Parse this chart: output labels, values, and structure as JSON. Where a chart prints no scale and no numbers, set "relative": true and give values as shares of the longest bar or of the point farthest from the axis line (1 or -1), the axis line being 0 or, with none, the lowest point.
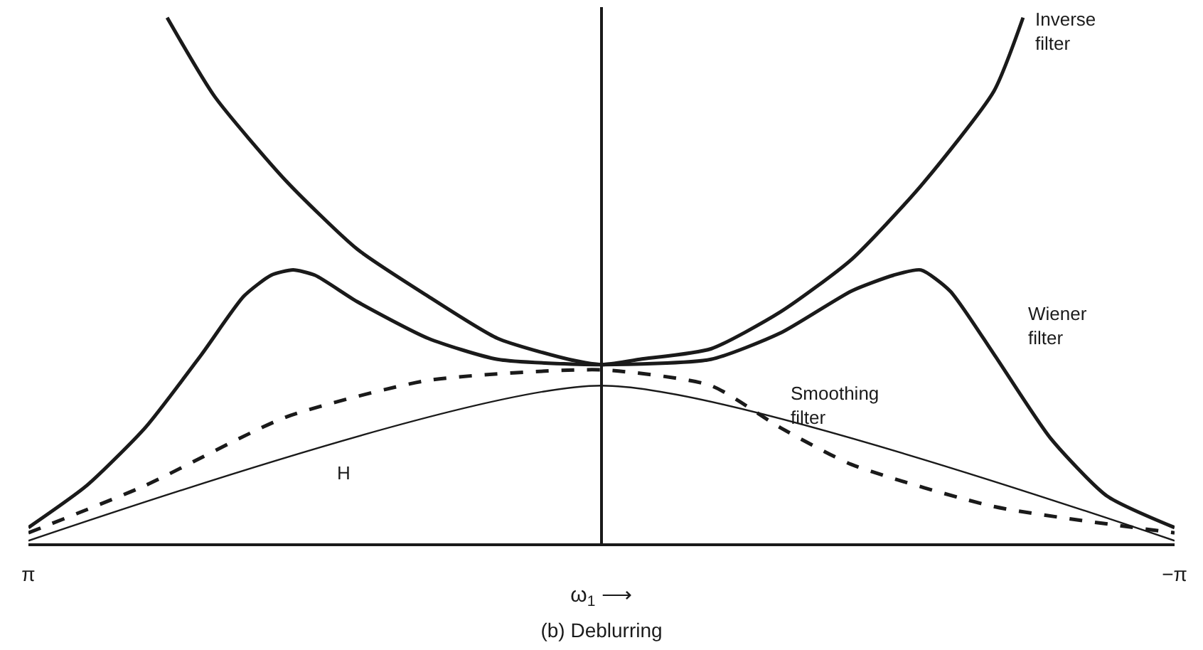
{
  "chart_data": {
    "type": "line",
    "title": "(b) Deblurring",
    "xlabel": "ω$_{1}$ ⟶",
    "relative": true,
    "xlim": [
      3.14,
      -3.14
    ],
    "xticks": [
      {
        "value": 3.14,
        "label": "π"
      },
      {
        "value": -3.14,
        "label": "−π"
      }
    ],
    "legend": false,
    "marker": "none",
    "series": [
      {
        "name": "Inverse filter",
        "color": "#1a1a1a",
        "line_style": "solid",
        "x": [
          2.38,
          2.12,
          1.73,
          1.34,
          0.95,
          0.57,
          0.18,
          0,
          -0.21,
          -0.6,
          -0.98,
          -1.37,
          -1.75,
          -2.15,
          -2.31
        ],
        "values": [
          1.0,
          0.85,
          0.69,
          0.56,
          0.47,
          0.39,
          0.35,
          0.34,
          0.35,
          0.37,
          0.44,
          0.54,
          0.68,
          0.86,
          1.0
        ]
      },
      {
        "name": "Wiener filter",
        "color": "#1a1a1a",
        "line_style": "solid",
        "x": [
          3.14,
          2.82,
          2.5,
          2.19,
          1.96,
          1.81,
          1.69,
          1.57,
          1.34,
          0.95,
          0.57,
          0,
          -0.6,
          -0.98,
          -1.37,
          -1.6,
          -1.75,
          -1.91,
          -2.15,
          -2.46,
          -2.77,
          -3.14
        ],
        "values": [
          0.03,
          0.11,
          0.22,
          0.36,
          0.47,
          0.51,
          0.52,
          0.51,
          0.46,
          0.39,
          0.35,
          0.34,
          0.35,
          0.4,
          0.48,
          0.51,
          0.52,
          0.48,
          0.36,
          0.2,
          0.09,
          0.03
        ]
      },
      {
        "name": "Smoothing filter",
        "color": "#1a1a1a",
        "line_style": "dashed",
        "x": [
          3.14,
          2.5,
          1.73,
          0.95,
          0,
          -0.6,
          -0.98,
          -1.37,
          -2.15,
          -3.14
        ],
        "values": [
          0.02,
          0.11,
          0.24,
          0.31,
          0.33,
          0.3,
          0.22,
          0.15,
          0.07,
          0.02
        ]
      },
      {
        "name": "H",
        "color": "#1a1a1a",
        "line_style": "solid",
        "x": [
          3.14,
          0,
          -3.14
        ],
        "values": [
          0.005,
          0.3,
          0.005
        ]
      }
    ]
  }
}
